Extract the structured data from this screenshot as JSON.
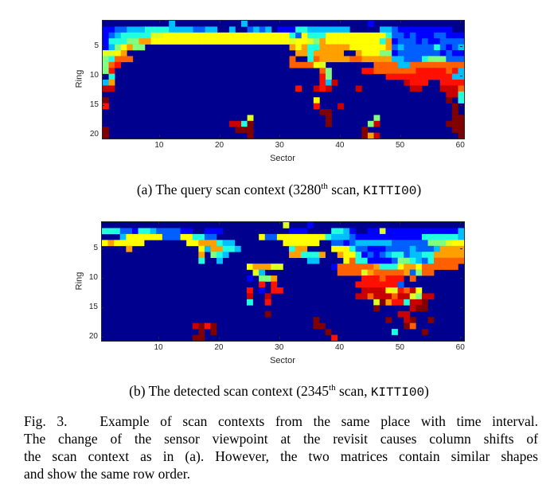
{
  "figure": {
    "subfigures": [
      {
        "id": "a",
        "caption_prefix": "(a) The query scan context (3280",
        "caption_sup": "th",
        "caption_mid": " scan, ",
        "caption_mono": "KITTI00",
        "caption_suffix": ")"
      },
      {
        "id": "b",
        "caption_prefix": "(b) The detected scan context (2345",
        "caption_sup": "th",
        "caption_mid": " scan, ",
        "caption_mono": "KITTI00",
        "caption_suffix": ")"
      }
    ],
    "caption_lines": [
      "Fig. 3.   Example of scan contexts from the same place with time interval.",
      "The change of the sensor viewpoint at the revisit causes column shifts of",
      "the scan context as in (a). However, the two matrices contain similar shapes",
      "and show the same row order."
    ]
  },
  "chart_data": [
    {
      "type": "heatmap",
      "title": "(a) The query scan context (3280th scan, KITTI00)",
      "xlabel": "Sector",
      "ylabel": "Ring",
      "xticks": [
        10,
        20,
        30,
        40,
        50,
        60
      ],
      "yticks": [
        5,
        10,
        15,
        20
      ],
      "xlim": [
        1,
        60
      ],
      "ylim": [
        1,
        20
      ],
      "colormap": "jet",
      "color_codes": {
        "0": "#00008f",
        "1": "#0000ff",
        "2": "#0060ff",
        "3": "#00bfff",
        "4": "#20ffdf",
        "5": "#80ff80",
        "6": "#dfff20",
        "7": "#ffff00",
        "8": "#ffa000",
        "9": "#ff6000",
        "a": "#ff1000",
        "b": "#c80000",
        "c": "#800000"
      },
      "rows": [
        "000000000003000000000003000000000000000000001000000000000000",
        "112233344443333223300300232301114433333330000033211111111100",
        "123444446677777777777777777777742744477777777774221211122111",
        "144455887777777777777777777777767765877777777748122212112222",
        "135785500000000000000000000000087844888887777778232222242123",
        "667800000000000000000000000000008848888800877755122222221211",
        "549990000000000000000000000000090049888889988888332224555222",
        "59a000000000000000000000000000099997600000000999933999999999",
        "5a00000000000000000000000000000000009500000aa9999999aaaaa9a3",
        "040000000000000000000000000000000000a5000000000aaaaaaaaaaa33",
        "380000000000000000000000000000000000a3b00000000000baaa00aaaa",
        "bb000000000000000000000000000000a00bab0000b00000000bb000bbb9",
        "000000000000000000000000000000000000000000000000000000000bb4",
        "c00000000000000000000000000000000007000000000000000000000c04",
        "a0000000000000000000000000000000000a000b000000000000000000c0",
        "000000000000000000000000000000000000cc00000000000000000000c0",
        "0000000000000000000000006000000000000c00000005000000000000cc",
        "000000000000000000000bb4c000000000000c0000005b00000000000ccc",
        "c000000000000000000000ccc000000000000000000c00000000000000cc",
        "c00000000000000000000000c000000000000000000c8b0000000000000c"
      ]
    },
    {
      "type": "heatmap",
      "title": "(b) The detected scan context (2345th scan, KITTI00)",
      "xlabel": "Sector",
      "ylabel": "Ring",
      "xticks": [
        10,
        20,
        30,
        40,
        50,
        60
      ],
      "yticks": [
        5,
        10,
        15,
        20
      ],
      "xlim": [
        1,
        60
      ],
      "ylim": [
        1,
        20
      ],
      "colormap": "jet",
      "color_codes": {
        "0": "#00008f",
        "1": "#0000ff",
        "2": "#0060ff",
        "3": "#00bfff",
        "4": "#20ffdf",
        "5": "#80ff80",
        "6": "#dfff20",
        "7": "#ffff00",
        "8": "#ffa000",
        "9": "#ff6000",
        "a": "#ff1000",
        "b": "#c80000",
        "c": "#800000"
      },
      "rows": [
        "000000000000000000000000000000600010000000000000000000000000",
        "444221443222211001110000000000011100004431001161111111111113",
        "000377777722277442200000007227777777743332111111111114444443",
        "7877777000000077888433000000007777770022123333332222225556777",
        "000080000000000073884430000000048800007774221112222322238888",
        "000000000000000080543000000000088444800877412123442334488888",
        "00000000000000004003000000000000003300007944111125543249999999",
        "0000000000000000000000007888660000000019999998444788799999900",
        "00000000000000000000000006300000000000099996899999825990000000",
        "0000000000000000000000001055800000000000000aaa9aaa0900000000",
        "00000000000000000000000000a0a0000000000000aaaaaaa20000000000",
        "000000000000000000000000a010aa0000000000000bbbb76a9b7000000000",
        "000000000000000000000000b00b00000000000000bb9bbb9bb65bb000000",
        "000000000000000000000000400a000000000000000006c8aa4bbc0000000",
        "000000000000000000000000000000000000000000000c00000bcc000000",
        "000000000000000000000000000c000000000000000000000bb000000000",
        "00000000000000000000000000000000000c00000000000c00bc00c00000",
        "000000000000000bcac0000000000000000cc0000000000000c90000000000",
        "0000000000000000c0c000000000000000000c000000000040000c0000000",
        "000000000000000cc000000000000000000000a000000000000000000000"
      ]
    }
  ]
}
